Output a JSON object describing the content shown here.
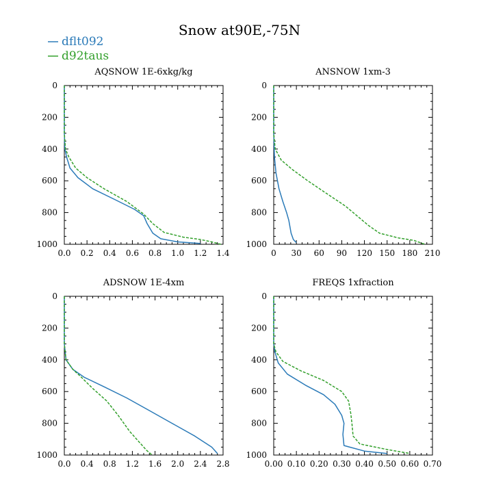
{
  "figure_title": "Snow at90E,-75N",
  "legend": [
    {
      "label": "dflt092",
      "color": "#2a7ab8",
      "dash": "solid"
    },
    {
      "label": "d92taus",
      "color": "#33a02c",
      "dash": "dashed"
    }
  ],
  "chart_data": [
    {
      "type": "line",
      "title": "AQSNOW  1E-6xkg/kg",
      "xlim": [
        0,
        1.4
      ],
      "ylim": [
        0,
        1000
      ],
      "y_inverted": true,
      "xticks": [
        "0.0",
        "0.2",
        "0.4",
        "0.6",
        "0.8",
        "1.0",
        "1.2",
        "1.4"
      ],
      "yticks": [
        "0",
        "200",
        "400",
        "600",
        "800",
        "1000"
      ],
      "series": [
        {
          "name": "dflt092",
          "color": "#2a7ab8",
          "dash": "solid",
          "points": [
            [
              0,
              0
            ],
            [
              0,
              300
            ],
            [
              0.005,
              400
            ],
            [
              0.02,
              450
            ],
            [
              0.05,
              520
            ],
            [
              0.12,
              580
            ],
            [
              0.25,
              650
            ],
            [
              0.45,
              720
            ],
            [
              0.62,
              780
            ],
            [
              0.7,
              820
            ],
            [
              0.73,
              870
            ],
            [
              0.78,
              930
            ],
            [
              0.85,
              965
            ],
            [
              1.0,
              985
            ],
            [
              1.2,
              995
            ]
          ]
        },
        {
          "name": "d92taus",
          "color": "#33a02c",
          "dash": "dashed",
          "points": [
            [
              0,
              0
            ],
            [
              0,
              300
            ],
            [
              0.01,
              400
            ],
            [
              0.04,
              450
            ],
            [
              0.1,
              520
            ],
            [
              0.2,
              580
            ],
            [
              0.35,
              650
            ],
            [
              0.55,
              730
            ],
            [
              0.7,
              810
            ],
            [
              0.78,
              870
            ],
            [
              0.88,
              925
            ],
            [
              1.05,
              955
            ],
            [
              1.2,
              970
            ],
            [
              1.3,
              985
            ],
            [
              1.38,
              1000
            ]
          ]
        }
      ]
    },
    {
      "type": "line",
      "title": "ANSNOW  1xm-3",
      "xlim": [
        0,
        210
      ],
      "ylim": [
        0,
        1000
      ],
      "y_inverted": true,
      "xticks": [
        "0",
        "30",
        "60",
        "90",
        "120",
        "150",
        "180",
        "210"
      ],
      "yticks": [
        "0",
        "200",
        "400",
        "600",
        "800",
        "1000"
      ],
      "series": [
        {
          "name": "dflt092",
          "color": "#2a7ab8",
          "dash": "solid",
          "points": [
            [
              0,
              0
            ],
            [
              0,
              300
            ],
            [
              1,
              450
            ],
            [
              3,
              550
            ],
            [
              7,
              650
            ],
            [
              12,
              730
            ],
            [
              17,
              800
            ],
            [
              20,
              850
            ],
            [
              23,
              930
            ],
            [
              26,
              970
            ],
            [
              30,
              990
            ]
          ]
        },
        {
          "name": "d92taus",
          "color": "#33a02c",
          "dash": "dashed",
          "points": [
            [
              0,
              0
            ],
            [
              0,
              300
            ],
            [
              2,
              400
            ],
            [
              10,
              470
            ],
            [
              25,
              530
            ],
            [
              45,
              600
            ],
            [
              70,
              680
            ],
            [
              95,
              760
            ],
            [
              110,
              820
            ],
            [
              125,
              880
            ],
            [
              140,
              930
            ],
            [
              165,
              960
            ],
            [
              185,
              975
            ],
            [
              200,
              1000
            ]
          ]
        }
      ]
    },
    {
      "type": "line",
      "title": "ADSNOW  1E-4xm",
      "xlim": [
        0,
        2.8
      ],
      "ylim": [
        0,
        1000
      ],
      "y_inverted": true,
      "xticks": [
        "0.0",
        "0.4",
        "0.8",
        "1.2",
        "1.6",
        "2.0",
        "2.4",
        "2.8"
      ],
      "yticks": [
        "0",
        "200",
        "400",
        "600",
        "800",
        "1000"
      ],
      "series": [
        {
          "name": "dflt092",
          "color": "#2a7ab8",
          "dash": "solid",
          "points": [
            [
              0,
              0
            ],
            [
              0,
              300
            ],
            [
              0.03,
              400
            ],
            [
              0.15,
              460
            ],
            [
              0.35,
              510
            ],
            [
              0.7,
              570
            ],
            [
              1.1,
              640
            ],
            [
              1.5,
              720
            ],
            [
              1.9,
              800
            ],
            [
              2.3,
              880
            ],
            [
              2.6,
              950
            ],
            [
              2.65,
              970
            ],
            [
              2.7,
              990
            ]
          ]
        },
        {
          "name": "d92taus",
          "color": "#33a02c",
          "dash": "dashed",
          "points": [
            [
              0,
              0
            ],
            [
              0,
              300
            ],
            [
              0.03,
              400
            ],
            [
              0.15,
              460
            ],
            [
              0.3,
              510
            ],
            [
              0.5,
              580
            ],
            [
              0.75,
              660
            ],
            [
              0.95,
              750
            ],
            [
              1.15,
              850
            ],
            [
              1.35,
              930
            ],
            [
              1.45,
              970
            ],
            [
              1.55,
              1000
            ]
          ]
        }
      ]
    },
    {
      "type": "line",
      "title": "FREQS  1xfraction",
      "xlim": [
        0,
        0.7
      ],
      "ylim": [
        0,
        1000
      ],
      "y_inverted": true,
      "xticks": [
        "0.00",
        "0.10",
        "0.20",
        "0.30",
        "0.40",
        "0.50",
        "0.60",
        "0.70"
      ],
      "yticks": [
        "0",
        "200",
        "400",
        "600",
        "800",
        "1000"
      ],
      "series": [
        {
          "name": "dflt092",
          "color": "#2a7ab8",
          "dash": "solid",
          "points": [
            [
              0,
              0
            ],
            [
              0,
              300
            ],
            [
              0.005,
              350
            ],
            [
              0.02,
              420
            ],
            [
              0.06,
              490
            ],
            [
              0.14,
              560
            ],
            [
              0.22,
              620
            ],
            [
              0.27,
              680
            ],
            [
              0.3,
              750
            ],
            [
              0.31,
              800
            ],
            [
              0.305,
              870
            ],
            [
              0.31,
              940
            ],
            [
              0.4,
              975
            ],
            [
              0.5,
              990
            ]
          ]
        },
        {
          "name": "d92taus",
          "color": "#33a02c",
          "dash": "dashed",
          "points": [
            [
              0,
              0
            ],
            [
              0,
              300
            ],
            [
              0.01,
              350
            ],
            [
              0.04,
              410
            ],
            [
              0.12,
              470
            ],
            [
              0.22,
              530
            ],
            [
              0.3,
              600
            ],
            [
              0.33,
              660
            ],
            [
              0.34,
              740
            ],
            [
              0.345,
              800
            ],
            [
              0.35,
              880
            ],
            [
              0.38,
              930
            ],
            [
              0.5,
              965
            ],
            [
              0.6,
              990
            ]
          ]
        }
      ]
    }
  ]
}
